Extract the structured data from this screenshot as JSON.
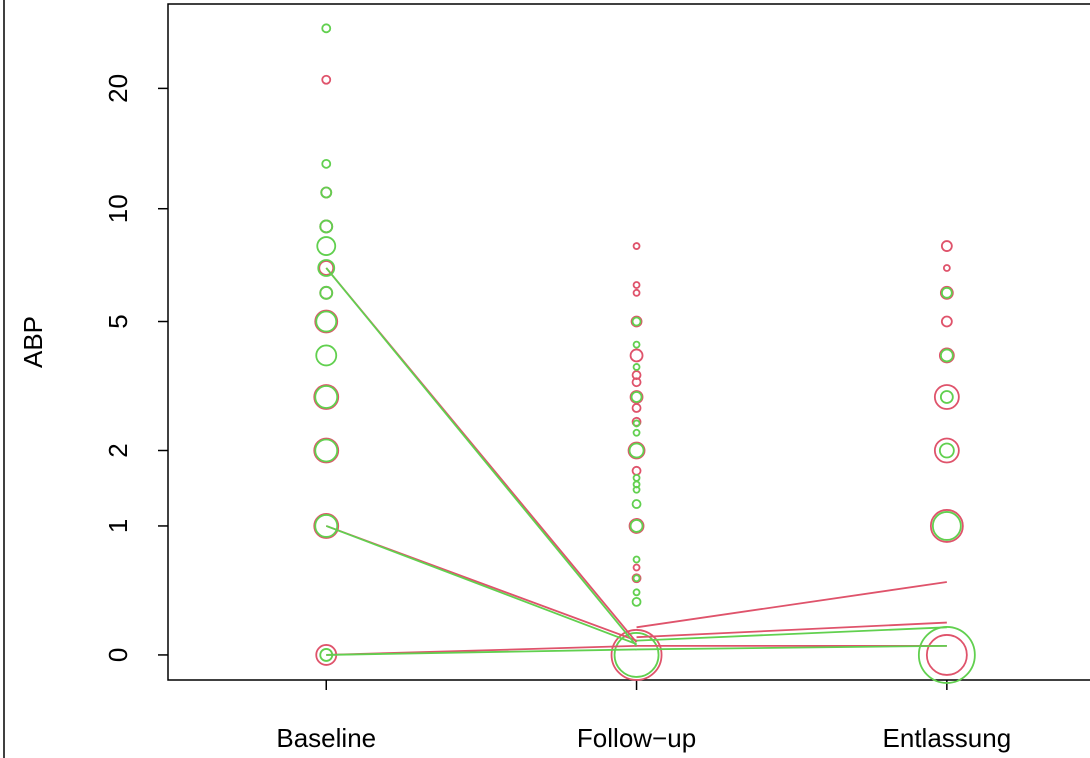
{
  "chart_data": {
    "type": "bubble",
    "ylabel": "ABP",
    "yscale": "log1p",
    "xlim": [
      0.49,
      3.5
    ],
    "ylim": [
      -0.126,
      32.05
    ],
    "xticks": [
      {
        "value": 1,
        "label": "Baseline"
      },
      {
        "value": 2,
        "label": "Follow−up"
      },
      {
        "value": 3,
        "label": "Entlassung"
      }
    ],
    "yticks": [
      0,
      1,
      2,
      5,
      10,
      20
    ],
    "series": [
      {
        "color": "#DF536B",
        "x": [
          1,
          1,
          1,
          1,
          1,
          1,
          1,
          1,
          1,
          1,
          2,
          2,
          2,
          2,
          2,
          2,
          2,
          2,
          2,
          2,
          2,
          2,
          2,
          2,
          2,
          2,
          3,
          3,
          3,
          3,
          3,
          3,
          3,
          3,
          3
        ],
        "values": [
          21,
          11,
          9,
          7,
          6,
          5,
          3,
          2,
          1,
          0,
          8,
          6.3,
          6,
          5,
          4,
          3.5,
          3.33,
          3,
          2.77,
          2.5,
          2,
          1.69,
          1,
          0.6,
          0.51,
          0,
          8,
          7,
          6,
          5,
          4,
          3,
          2,
          1,
          0
        ],
        "sizes": [
          4,
          5,
          6,
          7,
          6,
          11,
          12,
          12,
          12,
          10,
          3,
          3,
          3,
          5,
          6,
          4,
          4,
          6,
          4,
          4,
          8,
          4,
          7,
          3,
          4,
          25,
          5,
          3,
          6,
          5,
          7,
          12,
          12,
          16,
          20
        ]
      },
      {
        "color": "#61D04F",
        "x": [
          1,
          1,
          1,
          1,
          1,
          1,
          1,
          1,
          1,
          1,
          1,
          1,
          1,
          2,
          2,
          2,
          2,
          2,
          2,
          2,
          2,
          2,
          2,
          2,
          2,
          2,
          2,
          2,
          2,
          2,
          3,
          3,
          3,
          3,
          3,
          3
        ],
        "values": [
          28,
          13,
          11,
          9,
          8,
          7,
          6,
          5,
          4,
          3,
          2,
          1,
          0,
          5,
          4.3,
          3.7,
          3,
          2.47,
          2.3,
          2,
          1.59,
          1.5,
          1.43,
          1.25,
          1,
          0.67,
          0.51,
          0.4,
          0.33,
          0,
          6,
          4,
          3,
          2,
          1,
          0
        ],
        "sizes": [
          4,
          4,
          5,
          6,
          9,
          8,
          6,
          10,
          10,
          11,
          11,
          11,
          6,
          4,
          3,
          3,
          5,
          3,
          3,
          7,
          3,
          3,
          3,
          4,
          6,
          3,
          3,
          3,
          4,
          22,
          5,
          6,
          6,
          7,
          14,
          28
        ]
      }
    ],
    "lines": [
      {
        "color": "#DF536B",
        "x": [
          1,
          2,
          3
        ],
        "values": [
          7,
          0.07,
          null
        ]
      },
      {
        "color": "#DF536B",
        "x": [
          1,
          2,
          3
        ],
        "values": [
          1,
          0.08,
          null
        ]
      },
      {
        "color": "#DF536B",
        "x": [
          1,
          2,
          3
        ],
        "values": [
          0,
          0.05,
          null
        ]
      },
      {
        "color": "#DF536B",
        "x": [
          1,
          2,
          3
        ],
        "values": [
          null,
          0.16,
          0.48
        ]
      },
      {
        "color": "#DF536B",
        "x": [
          1,
          2,
          3
        ],
        "values": [
          null,
          0.1,
          0.19
        ]
      },
      {
        "color": "#DF536B",
        "x": [
          1,
          2,
          3
        ],
        "values": [
          null,
          0.05,
          0.05
        ]
      },
      {
        "color": "#61D04F",
        "x": [
          1,
          2,
          3
        ],
        "values": [
          7,
          0.05,
          null
        ]
      },
      {
        "color": "#61D04F",
        "x": [
          1,
          2,
          3
        ],
        "values": [
          1,
          0.06,
          null
        ]
      },
      {
        "color": "#61D04F",
        "x": [
          1,
          2,
          3
        ],
        "values": [
          0,
          0.03,
          null
        ]
      },
      {
        "color": "#61D04F",
        "x": [
          1,
          2,
          3
        ],
        "values": [
          null,
          0.08,
          0.16
        ]
      },
      {
        "color": "#61D04F",
        "x": [
          1,
          2,
          3
        ],
        "values": [
          null,
          0.03,
          0.05
        ]
      }
    ]
  }
}
